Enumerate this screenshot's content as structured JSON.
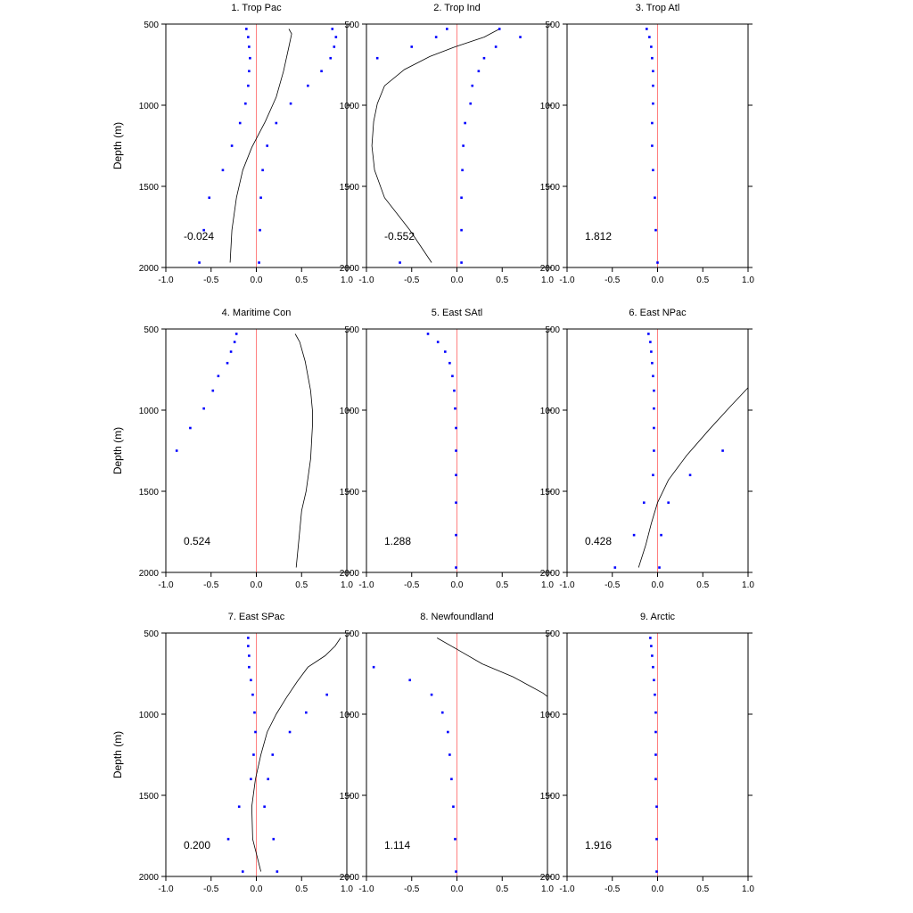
{
  "chart_data": {
    "type": "line",
    "y_axis_label": "Depth (m)",
    "x_ticks": [
      -1.0,
      -0.5,
      0.0,
      0.5,
      1.0
    ],
    "x_tick_labels": [
      "-1.0",
      "-0.5",
      "0.0",
      "0.5",
      "1.0"
    ],
    "y_ticks": [
      500,
      1000,
      1500,
      2000
    ],
    "y_tick_labels": [
      "500",
      "1000",
      "1500",
      "2000"
    ],
    "xlim": [
      -1.0,
      1.0
    ],
    "ylim": [
      500,
      2000
    ],
    "y_inverted": true,
    "colors": {
      "points": "#0000ff",
      "line": "#000000",
      "zero_line": "#ff8080"
    },
    "panels": [
      {
        "title": "1. Trop Pac",
        "score": "-0.024",
        "points": [
          [
            -0.11,
            530
          ],
          [
            0.84,
            530
          ],
          [
            -0.09,
            580
          ],
          [
            0.88,
            580
          ],
          [
            -0.08,
            640
          ],
          [
            0.86,
            640
          ],
          [
            -0.07,
            710
          ],
          [
            0.82,
            710
          ],
          [
            -0.08,
            790
          ],
          [
            0.72,
            790
          ],
          [
            -0.09,
            880
          ],
          [
            0.57,
            880
          ],
          [
            -0.12,
            990
          ],
          [
            0.38,
            990
          ],
          [
            -0.18,
            1110
          ],
          [
            0.22,
            1110
          ],
          [
            -0.27,
            1250
          ],
          [
            0.12,
            1250
          ],
          [
            -0.37,
            1400
          ],
          [
            0.07,
            1400
          ],
          [
            -0.52,
            1570
          ],
          [
            0.05,
            1570
          ],
          [
            -0.58,
            1770
          ],
          [
            0.04,
            1770
          ],
          [
            -0.63,
            1970
          ],
          [
            0.03,
            1970
          ]
        ],
        "line": [
          [
            0.36,
            530
          ],
          [
            0.39,
            560
          ],
          [
            0.36,
            640
          ],
          [
            0.3,
            790
          ],
          [
            0.22,
            950
          ],
          [
            0.1,
            1100
          ],
          [
            -0.05,
            1260
          ],
          [
            -0.15,
            1400
          ],
          [
            -0.22,
            1570
          ],
          [
            -0.27,
            1770
          ],
          [
            -0.29,
            1970
          ]
        ]
      },
      {
        "title": "2. Trop Ind",
        "score": "-0.552",
        "points": [
          [
            -0.11,
            530
          ],
          [
            0.47,
            530
          ],
          [
            -0.23,
            580
          ],
          [
            0.7,
            580
          ],
          [
            -0.5,
            640
          ],
          [
            0.43,
            640
          ],
          [
            -0.88,
            710
          ],
          [
            0.3,
            710
          ],
          [
            0.24,
            790
          ],
          [
            0.17,
            880
          ],
          [
            0.15,
            990
          ],
          [
            0.09,
            1110
          ],
          [
            0.07,
            1250
          ],
          [
            0.06,
            1400
          ],
          [
            0.05,
            1570
          ],
          [
            0.05,
            1770
          ],
          [
            -0.63,
            1970
          ],
          [
            0.05,
            1970
          ]
        ],
        "line": [
          [
            0.47,
            530
          ],
          [
            0.3,
            580
          ],
          [
            -0.02,
            640
          ],
          [
            -0.3,
            700
          ],
          [
            -0.58,
            780
          ],
          [
            -0.8,
            880
          ],
          [
            -0.88,
            990
          ],
          [
            -0.92,
            1100
          ],
          [
            -0.94,
            1250
          ],
          [
            -0.91,
            1400
          ],
          [
            -0.8,
            1570
          ],
          [
            -0.52,
            1770
          ],
          [
            -0.28,
            1970
          ]
        ]
      },
      {
        "title": "3. Trop Atl",
        "score": "1.812",
        "points": [
          [
            -0.12,
            530
          ],
          [
            -0.09,
            580
          ],
          [
            -0.07,
            640
          ],
          [
            -0.06,
            710
          ],
          [
            -0.05,
            790
          ],
          [
            -0.05,
            880
          ],
          [
            -0.05,
            990
          ],
          [
            -0.06,
            1110
          ],
          [
            -0.06,
            1250
          ],
          [
            -0.05,
            1400
          ],
          [
            -0.03,
            1570
          ],
          [
            -0.02,
            1770
          ],
          [
            0.0,
            1970
          ]
        ],
        "line": []
      },
      {
        "title": "4. Maritime Con",
        "score": "0.524",
        "points": [
          [
            -0.22,
            530
          ],
          [
            -0.24,
            580
          ],
          [
            -0.28,
            640
          ],
          [
            -0.32,
            710
          ],
          [
            -0.42,
            790
          ],
          [
            -0.48,
            880
          ],
          [
            -0.58,
            990
          ],
          [
            -0.73,
            1110
          ],
          [
            -0.88,
            1250
          ]
        ],
        "line": [
          [
            0.43,
            530
          ],
          [
            0.48,
            580
          ],
          [
            0.54,
            700
          ],
          [
            0.6,
            880
          ],
          [
            0.62,
            1000
          ],
          [
            0.62,
            1100
          ],
          [
            0.6,
            1300
          ],
          [
            0.55,
            1500
          ],
          [
            0.5,
            1620
          ],
          [
            0.47,
            1800
          ],
          [
            0.44,
            1970
          ]
        ]
      },
      {
        "title": "5. East SAtl",
        "score": "1.288",
        "points": [
          [
            -0.32,
            530
          ],
          [
            -0.21,
            580
          ],
          [
            -0.13,
            640
          ],
          [
            -0.08,
            710
          ],
          [
            -0.05,
            790
          ],
          [
            -0.03,
            880
          ],
          [
            -0.02,
            990
          ],
          [
            -0.01,
            1110
          ],
          [
            -0.01,
            1250
          ],
          [
            -0.01,
            1400
          ],
          [
            -0.01,
            1570
          ],
          [
            -0.01,
            1770
          ],
          [
            -0.01,
            1970
          ]
        ],
        "line": []
      },
      {
        "title": "6. East NPac",
        "score": "0.428",
        "points": [
          [
            -0.1,
            530
          ],
          [
            -0.08,
            580
          ],
          [
            -0.07,
            640
          ],
          [
            -0.06,
            710
          ],
          [
            -0.05,
            790
          ],
          [
            -0.04,
            880
          ],
          [
            -0.04,
            990
          ],
          [
            -0.04,
            1110
          ],
          [
            -0.04,
            1250
          ],
          [
            0.72,
            1250
          ],
          [
            -0.05,
            1400
          ],
          [
            0.36,
            1400
          ],
          [
            -0.15,
            1570
          ],
          [
            0.12,
            1570
          ],
          [
            -0.26,
            1770
          ],
          [
            0.04,
            1770
          ],
          [
            -0.47,
            1970
          ],
          [
            0.02,
            1970
          ]
        ],
        "line": [
          [
            1.02,
            850
          ],
          [
            0.8,
            980
          ],
          [
            0.57,
            1120
          ],
          [
            0.32,
            1280
          ],
          [
            0.12,
            1430
          ],
          [
            0.0,
            1570
          ],
          [
            -0.07,
            1700
          ],
          [
            -0.13,
            1830
          ],
          [
            -0.21,
            1970
          ]
        ]
      },
      {
        "title": "7. East SPac",
        "score": "0.200",
        "points": [
          [
            -0.09,
            530
          ],
          [
            -0.09,
            580
          ],
          [
            -0.08,
            640
          ],
          [
            -0.08,
            710
          ],
          [
            -0.06,
            790
          ],
          [
            -0.04,
            880
          ],
          [
            0.78,
            880
          ],
          [
            -0.02,
            990
          ],
          [
            0.55,
            990
          ],
          [
            -0.01,
            1110
          ],
          [
            0.37,
            1110
          ],
          [
            -0.03,
            1250
          ],
          [
            0.18,
            1250
          ],
          [
            -0.06,
            1400
          ],
          [
            0.13,
            1400
          ],
          [
            -0.19,
            1570
          ],
          [
            0.09,
            1570
          ],
          [
            -0.31,
            1770
          ],
          [
            0.19,
            1770
          ],
          [
            -0.15,
            1970
          ],
          [
            0.23,
            1970
          ]
        ],
        "line": [
          [
            0.93,
            530
          ],
          [
            0.87,
            580
          ],
          [
            0.76,
            640
          ],
          [
            0.57,
            710
          ],
          [
            0.45,
            800
          ],
          [
            0.33,
            900
          ],
          [
            0.22,
            1000
          ],
          [
            0.12,
            1110
          ],
          [
            0.05,
            1250
          ],
          [
            -0.01,
            1400
          ],
          [
            -0.05,
            1570
          ],
          [
            -0.04,
            1770
          ],
          [
            0.05,
            1970
          ]
        ]
      },
      {
        "title": "8. Newfoundland",
        "score": "1.114",
        "points": [
          [
            -0.92,
            710
          ],
          [
            -0.52,
            790
          ],
          [
            -0.28,
            880
          ],
          [
            -0.16,
            990
          ],
          [
            -0.1,
            1110
          ],
          [
            -0.08,
            1250
          ],
          [
            -0.06,
            1400
          ],
          [
            -0.04,
            1570
          ],
          [
            -0.02,
            1770
          ],
          [
            -0.01,
            1970
          ]
        ],
        "line": [
          [
            -0.22,
            530
          ],
          [
            0.0,
            600
          ],
          [
            0.28,
            690
          ],
          [
            0.62,
            770
          ],
          [
            0.82,
            830
          ],
          [
            0.95,
            870
          ],
          [
            1.02,
            900
          ]
        ]
      },
      {
        "title": "9. Arctic",
        "score": "1.916",
        "points": [
          [
            -0.08,
            530
          ],
          [
            -0.07,
            580
          ],
          [
            -0.06,
            640
          ],
          [
            -0.05,
            710
          ],
          [
            -0.04,
            790
          ],
          [
            -0.03,
            880
          ],
          [
            -0.02,
            990
          ],
          [
            -0.02,
            1110
          ],
          [
            -0.02,
            1250
          ],
          [
            -0.02,
            1400
          ],
          [
            -0.01,
            1570
          ],
          [
            -0.01,
            1770
          ],
          [
            -0.01,
            1970
          ]
        ],
        "line": []
      }
    ]
  }
}
